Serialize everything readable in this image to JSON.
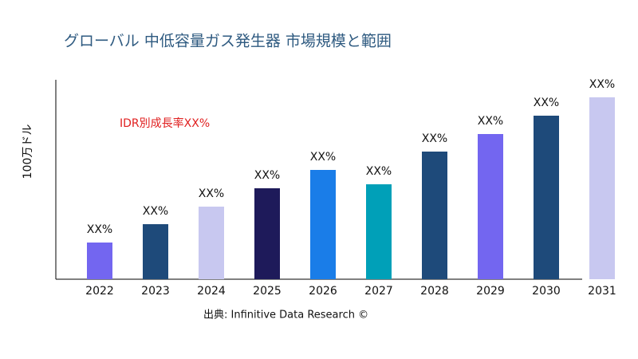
{
  "chart_data": {
    "type": "bar",
    "title": "グローバル 中低容量ガス発生器 市場規模と範囲",
    "y_label": "100万ドル",
    "annotation": "IDR別成長率XX%",
    "source": "出典: Infinitive Data Research ©",
    "categories": [
      "2022",
      "2023",
      "2024",
      "2025",
      "2026",
      "2027",
      "2028",
      "2029",
      "2030",
      "2031"
    ],
    "values": [
      46,
      69,
      91,
      114,
      137,
      119,
      160,
      182,
      205,
      228
    ],
    "value_labels": [
      "XX%",
      "XX%",
      "XX%",
      "XX%",
      "XX%",
      "XX%",
      "XX%",
      "XX%",
      "XX%",
      "XX%"
    ],
    "colors": [
      "#7366f0",
      "#1e4a7a",
      "#c8c8f0",
      "#1e1a5a",
      "#1a7de8",
      "#00a0b8",
      "#1e4a7a",
      "#7366f0",
      "#1e4a7a",
      "#c8c8f0"
    ],
    "ylim": [
      0,
      250
    ]
  }
}
